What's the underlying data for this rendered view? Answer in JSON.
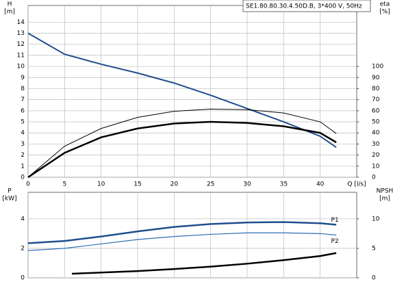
{
  "chart_data": [
    {
      "type": "line",
      "title": "SE1.80.80.30.4.50D.B, 3*400 V, 50Hz",
      "ylabel": [
        "H",
        "[m]"
      ],
      "y2label": [
        "eta",
        "[%]"
      ],
      "xlabel": "Q [l/s]",
      "xlim": [
        0,
        45
      ],
      "xticks": [
        0,
        5,
        10,
        15,
        20,
        25,
        30,
        35,
        40
      ],
      "ylim": [
        0,
        15.5
      ],
      "yticks": [
        0,
        1,
        2,
        3,
        4,
        5,
        6,
        7,
        8,
        9,
        10,
        11,
        12,
        13,
        14
      ],
      "y2lim": [
        0,
        155
      ],
      "y2ticks": [
        0,
        10,
        20,
        30,
        40,
        50,
        60,
        70,
        80,
        90,
        100
      ],
      "grid": true,
      "series": [
        {
          "color": "#1f4e8c",
          "linewidth": 2,
          "x": [
            0,
            5,
            10,
            15,
            20,
            25,
            30,
            35,
            40,
            42.2
          ],
          "values": [
            13,
            11.1,
            10.2,
            9.4,
            8.5,
            7.4,
            6.2,
            5.0,
            3.7,
            2.7
          ]
        },
        {
          "color": "#000000",
          "linewidth": 1,
          "axis": "y2",
          "x": [
            0,
            5,
            10,
            15,
            20,
            25,
            30,
            35,
            40,
            42.2
          ],
          "values": [
            0,
            28,
            44,
            54,
            59.5,
            61.5,
            61,
            58,
            50,
            39.5
          ]
        },
        {
          "color": "#000000",
          "linewidth": 2.5,
          "axis": "y2",
          "x": [
            0,
            5,
            10,
            15,
            20,
            25,
            30,
            35,
            40,
            42.2
          ],
          "values": [
            0,
            22,
            36,
            44,
            48.5,
            50,
            49,
            46,
            40,
            31.5
          ]
        }
      ]
    },
    {
      "type": "line",
      "ylabel": [
        "P",
        "[kW]"
      ],
      "y2label": [
        "NPSH",
        "[m]"
      ],
      "xlim": [
        0,
        45
      ],
      "xticks": [
        0,
        5,
        10,
        15,
        20,
        25,
        30,
        35,
        40
      ],
      "ylim": [
        0,
        5.8
      ],
      "yticks": [
        0,
        2,
        4
      ],
      "y2lim": [
        0,
        14.5
      ],
      "y2ticks": [
        0,
        5,
        10
      ],
      "grid": true,
      "series": [
        {
          "name": "P1",
          "color": "#1f4e8c",
          "linewidth": 2.5,
          "x": [
            0,
            5,
            10,
            15,
            20,
            25,
            30,
            35,
            40,
            42.2
          ],
          "values": [
            2.35,
            2.5,
            2.8,
            3.15,
            3.45,
            3.65,
            3.75,
            3.78,
            3.7,
            3.6
          ]
        },
        {
          "name": "P2",
          "color": "#2d6db5",
          "linewidth": 1.2,
          "x": [
            0,
            5,
            10,
            15,
            20,
            25,
            30,
            35,
            40,
            42.2
          ],
          "values": [
            1.85,
            2.0,
            2.3,
            2.6,
            2.8,
            2.95,
            3.05,
            3.05,
            3.0,
            2.9
          ]
        },
        {
          "color": "#000000",
          "linewidth": 2.5,
          "axis": "y2",
          "x": [
            6,
            10,
            15,
            20,
            25,
            30,
            35,
            40,
            42.2
          ],
          "values": [
            0.7,
            0.9,
            1.15,
            1.5,
            1.9,
            2.4,
            3.0,
            3.7,
            4.2
          ]
        }
      ]
    }
  ]
}
